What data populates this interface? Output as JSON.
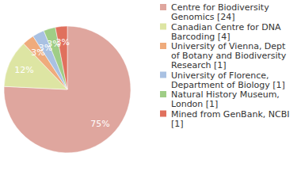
{
  "chart_data": {
    "type": "pie",
    "categories": [
      "Centre for Biodiversity Genomics [24]",
      "Canadian Centre for DNA Barcoding [4]",
      "University of Vienna, Dept of Botany and Biodiversity Research [1]",
      "University of Florence, Department of Biology [1]",
      "Natural History Museum, London [1]",
      "Mined from GenBank, NCBI [1]"
    ],
    "values": [
      75,
      12,
      3,
      3,
      3,
      3
    ],
    "value_labels": [
      "75%",
      "12%",
      "3%",
      "3%",
      "3%",
      "3%"
    ],
    "colors": [
      "#dfa69e",
      "#dde5a3",
      "#efab7c",
      "#a9c1e2",
      "#9fcd86",
      "#e0705d"
    ],
    "data_labels": true,
    "legend": "right"
  }
}
